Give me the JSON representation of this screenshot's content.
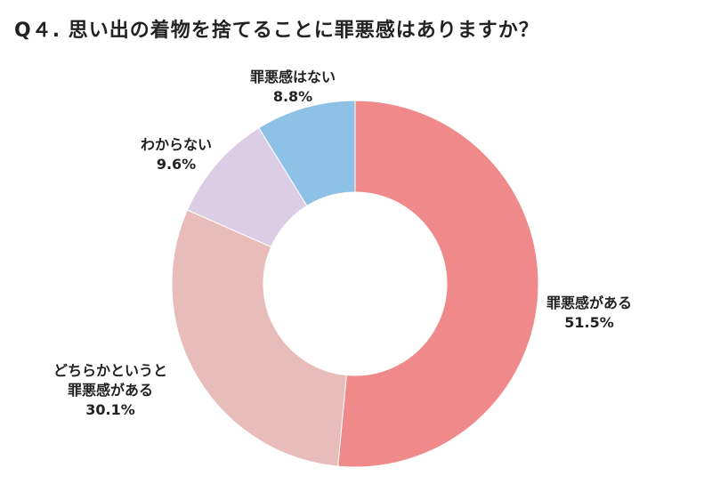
{
  "title": "Q４. 思い出の着物を捨てることに罪悪感はありますか？",
  "chart_data": {
    "type": "pie",
    "title": "Q４. 思い出の着物を捨てることに罪悪感はありますか？",
    "donut": true,
    "start": "12 o'clock, clockwise",
    "series": [
      {
        "name": "罪悪感がある",
        "label_lines": [
          "罪悪感がある"
        ],
        "value": 51.5,
        "value_label": "51.5%",
        "color": "#F08A8A"
      },
      {
        "name": "どちらかというと罪悪感がある",
        "label_lines": [
          "どちらかというと",
          "罪悪感がある"
        ],
        "value": 30.1,
        "value_label": "30.1%",
        "color": "#E8BCB8"
      },
      {
        "name": "わからない",
        "label_lines": [
          "わからない"
        ],
        "value": 9.6,
        "value_label": "9.6%",
        "color": "#DCCDE6"
      },
      {
        "name": "罪悪感はない",
        "label_lines": [
          "罪悪感はない"
        ],
        "value": 8.8,
        "value_label": "8.8%",
        "color": "#8EC1E6"
      }
    ]
  }
}
